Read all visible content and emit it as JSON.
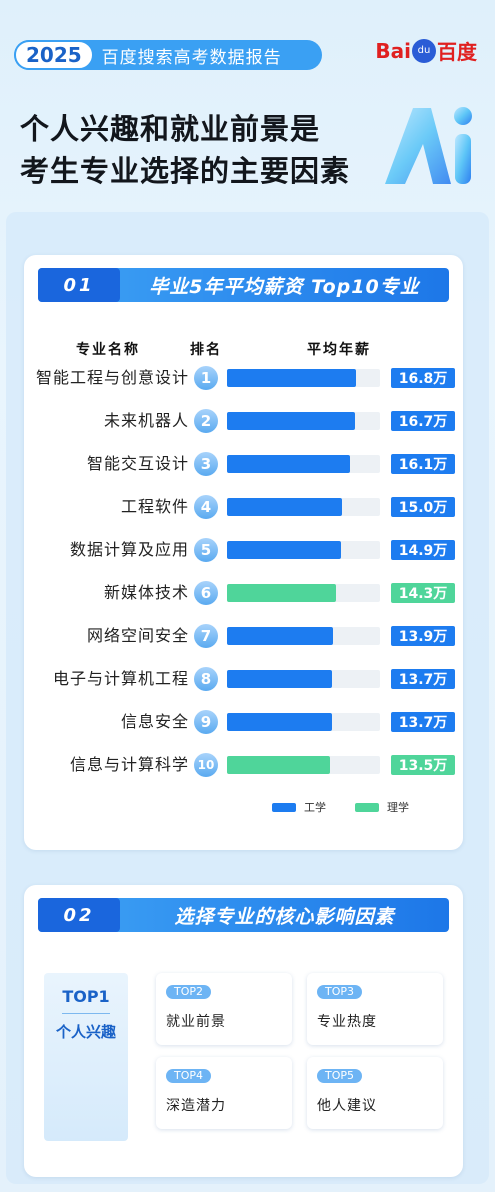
{
  "header": {
    "year": "2025",
    "report_title": "百度搜索高考数据报告",
    "brand_bai": "Bai",
    "brand_du": "du",
    "brand_cn": "百度",
    "headline_1": "个人兴趣和就业前景是",
    "headline_2": "考生专业选择的主要因素"
  },
  "section1": {
    "num": "01",
    "title": "毕业5年平均薪资 Top10专业",
    "col_name": "专业名称",
    "col_rank": "排名",
    "col_salary": "平均年薪",
    "legend": [
      {
        "label": "工学",
        "color": "#1d7cf0"
      },
      {
        "label": "理学",
        "color": "#4fd59a"
      }
    ]
  },
  "chart_data": {
    "type": "bar",
    "title": "毕业5年平均薪资 Top10专业",
    "unit": "万",
    "categories": [
      "智能工程与创意设计",
      "未来机器人",
      "智能交互设计",
      "工程软件",
      "数据计算及应用",
      "新媒体技术",
      "网络空间安全",
      "电子与计算机工程",
      "信息安全",
      "信息与计算科学"
    ],
    "ranks": [
      1,
      2,
      3,
      4,
      5,
      6,
      7,
      8,
      9,
      10
    ],
    "values": [
      16.8,
      16.7,
      16.1,
      15.0,
      14.9,
      14.3,
      13.9,
      13.7,
      13.7,
      13.5
    ],
    "labels": [
      "16.8万",
      "16.7万",
      "16.1万",
      "15.0万",
      "14.9万",
      "14.3万",
      "13.9万",
      "13.7万",
      "13.7万",
      "13.5万"
    ],
    "groups": [
      "工学",
      "工学",
      "工学",
      "工学",
      "工学",
      "理学",
      "工学",
      "工学",
      "工学",
      "理学"
    ],
    "group_colors": {
      "工学": "#1d7cf0",
      "理学": "#4fd59a"
    },
    "xlim": [
      0,
      20
    ]
  },
  "section2": {
    "num": "02",
    "title": "选择专业的核心影响因素",
    "top1_tag": "TOP1",
    "top1_label": "个人兴趣",
    "factors": [
      {
        "tag": "TOP2",
        "label": "就业前景"
      },
      {
        "tag": "TOP3",
        "label": "专业热度"
      },
      {
        "tag": "TOP4",
        "label": "深造潜力"
      },
      {
        "tag": "TOP5",
        "label": "他人建议"
      }
    ]
  }
}
